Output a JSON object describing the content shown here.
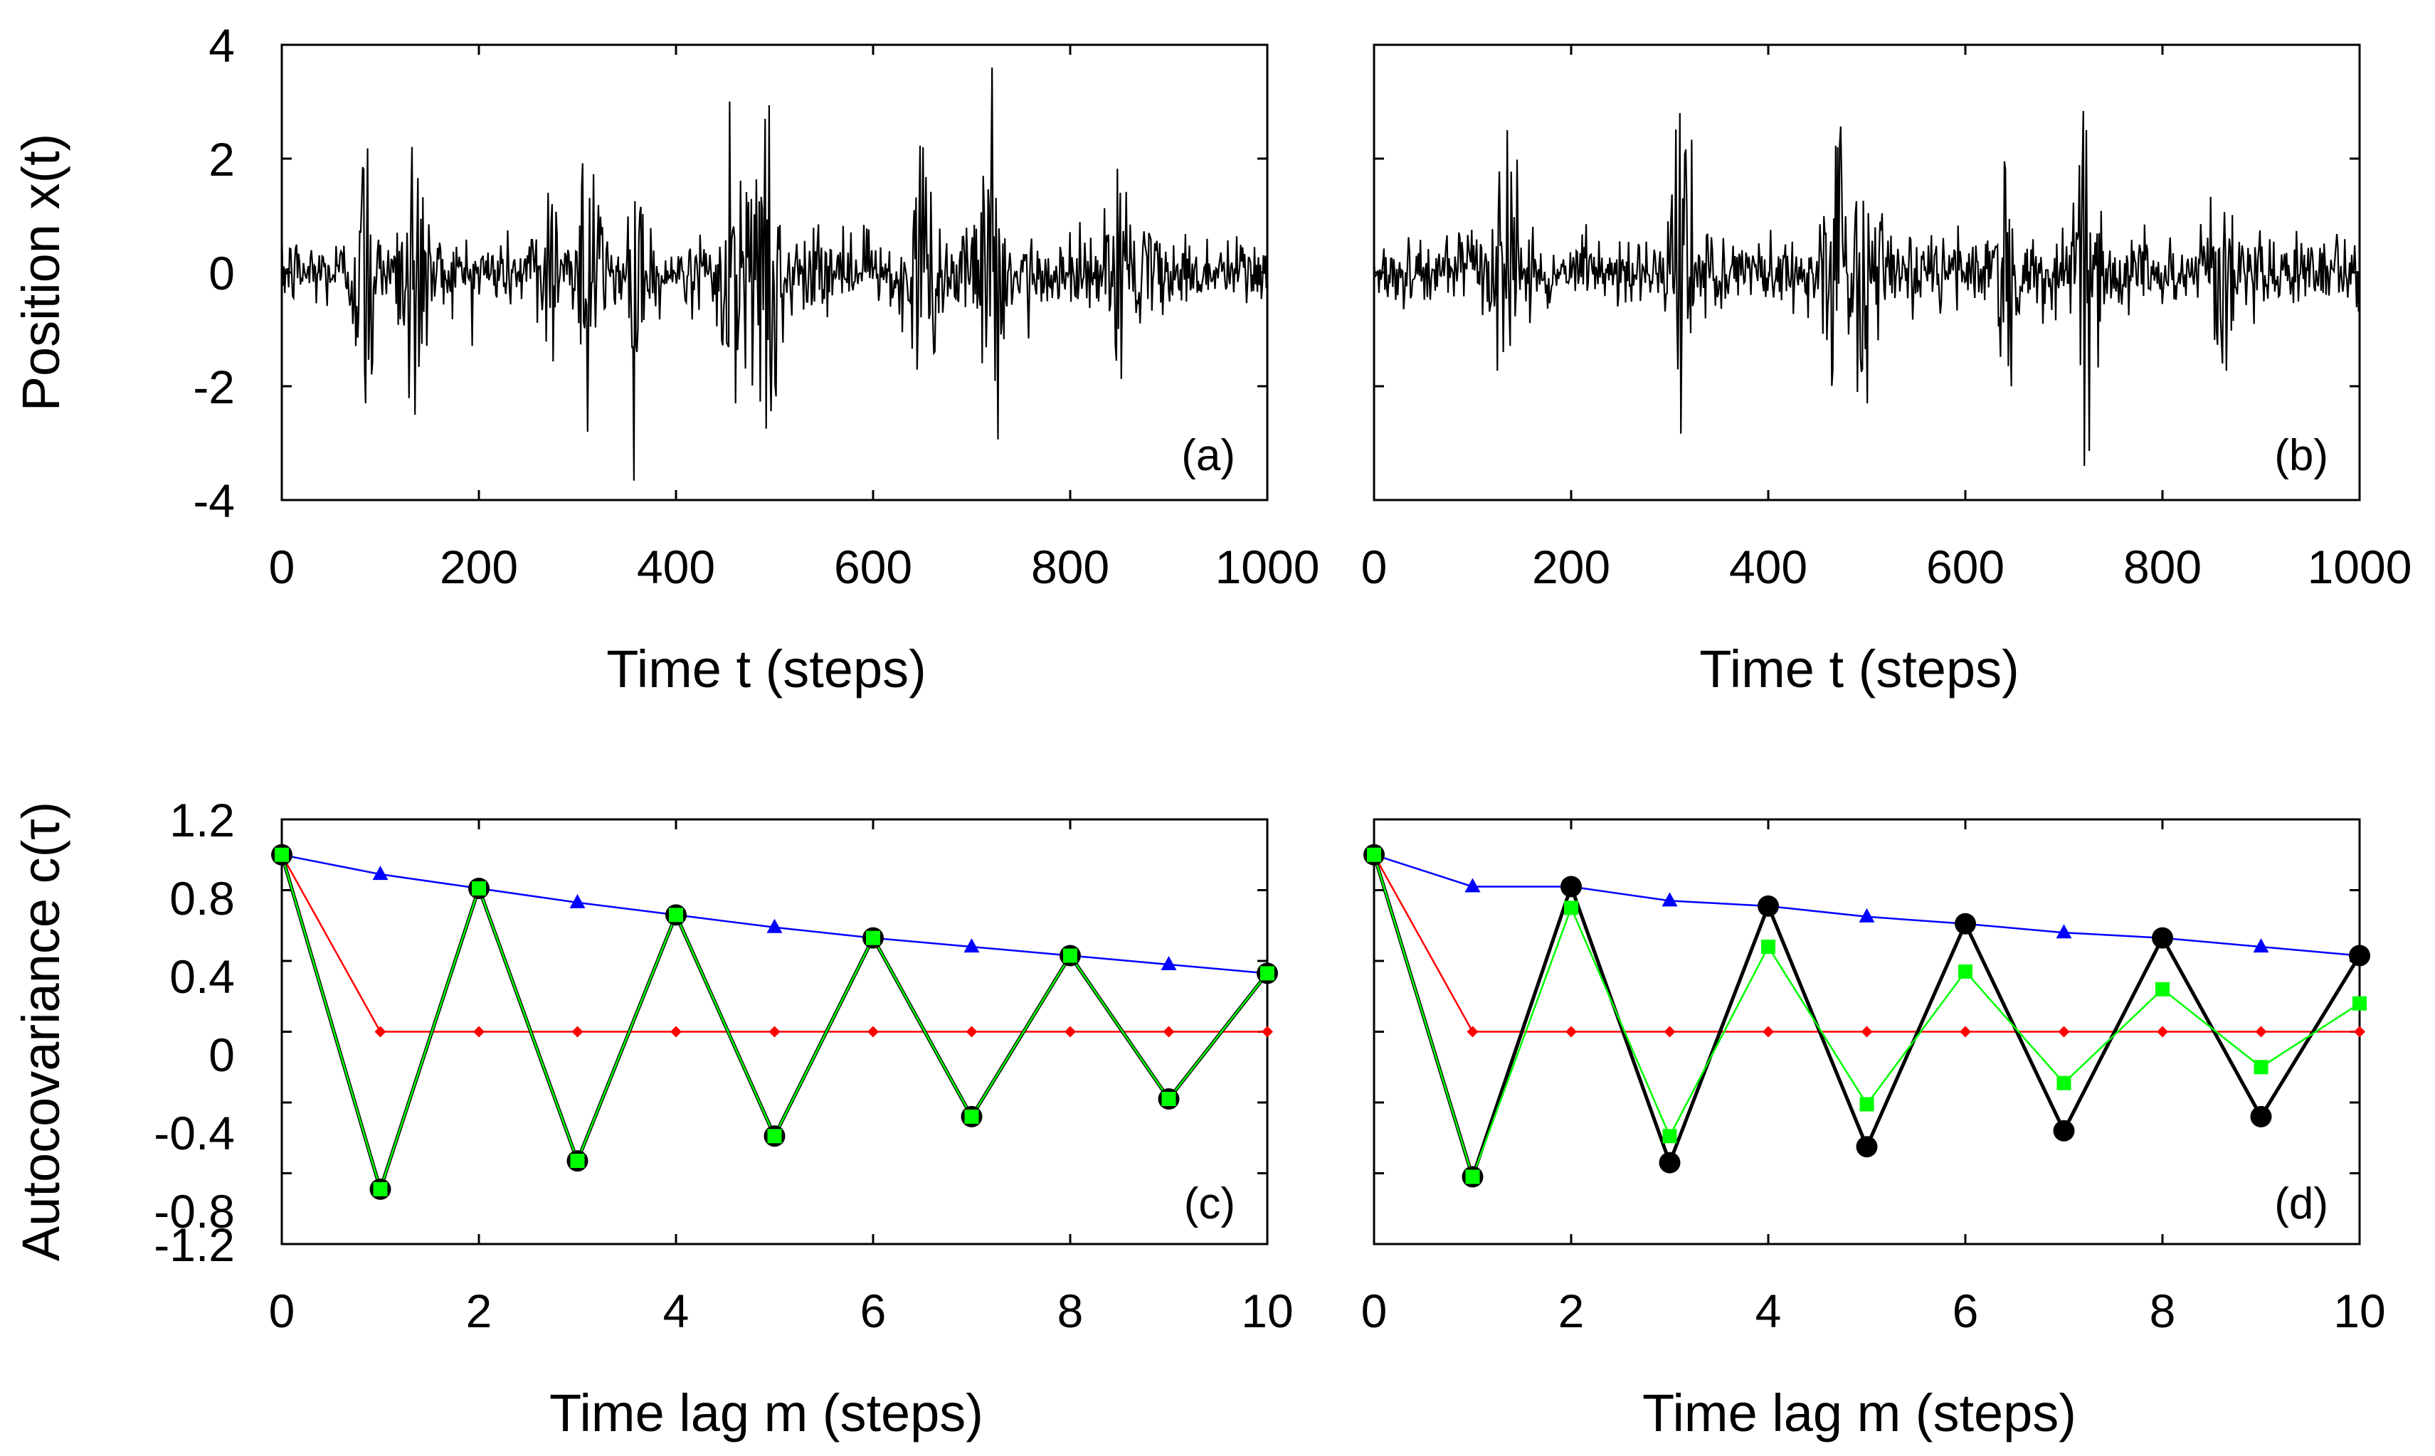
{
  "chart_data": [
    {
      "type": "line",
      "panel": "(a)",
      "xlabel": "Time t (steps)",
      "ylabel": "Position x(t)",
      "xlim": [
        0,
        1000
      ],
      "ylim": [
        -4,
        4
      ],
      "xticks": [
        "0",
        "200",
        "400",
        "600",
        "800",
        "1000"
      ],
      "yticks": [
        "4",
        "2",
        "0",
        "-2",
        "-4"
      ],
      "series": [
        {
          "name": "x(t)",
          "color": "#000000",
          "seed": 12345,
          "n_points": 1000,
          "description": "noisy bursty signal",
          "bursts": [
            {
              "t": 85,
              "amp": 2.3
            },
            {
              "t": 135,
              "amp": 2.5
            },
            {
              "t": 270,
              "amp": 1.4
            },
            {
              "t": 310,
              "amp": 2.8
            },
            {
              "t": 360,
              "amp": 1.4
            },
            {
              "t": 460,
              "amp": 2.3
            },
            {
              "t": 490,
              "amp": 2.7
            },
            {
              "t": 650,
              "amp": 2.2
            },
            {
              "t": 720,
              "amp": 3.6
            },
            {
              "t": 850,
              "amp": 1.4
            }
          ]
        }
      ]
    },
    {
      "type": "line",
      "panel": "(b)",
      "xlabel": "Time t (steps)",
      "ylabel": "",
      "xlim": [
        0,
        1000
      ],
      "ylim": [
        -4,
        4
      ],
      "xticks": [
        "0",
        "200",
        "400",
        "600",
        "800",
        "1000"
      ],
      "series": [
        {
          "name": "x(t)",
          "color": "#000000",
          "seed": 67890,
          "n_points": 1000,
          "description": "noisy bursty signal",
          "bursts": [
            {
              "t": 135,
              "amp": 2.5
            },
            {
              "t": 310,
              "amp": 2.8
            },
            {
              "t": 470,
              "amp": 2.2
            },
            {
              "t": 500,
              "amp": 2.3
            },
            {
              "t": 640,
              "amp": 1.8
            },
            {
              "t": 720,
              "amp": 3.4
            },
            {
              "t": 860,
              "amp": 1.6
            }
          ]
        }
      ]
    },
    {
      "type": "line",
      "panel": "(c)",
      "xlabel": "Time lag m (steps)",
      "ylabel": "Autocovariance c(τ)",
      "xlim": [
        0,
        10
      ],
      "ylim": [
        -1.2,
        1.2
      ],
      "xticks": [
        "0",
        "2",
        "4",
        "6",
        "8",
        "10"
      ],
      "yticks": [
        "1.2",
        "0.8",
        "0.4",
        "0",
        "-0.4",
        "-0.8",
        "-1.2"
      ],
      "x": [
        0,
        1,
        2,
        3,
        4,
        5,
        6,
        7,
        8,
        9,
        10
      ],
      "series": [
        {
          "name": "blue",
          "color": "#0000ff",
          "marker": "triangle",
          "values": [
            1.0,
            0.89,
            0.81,
            0.73,
            0.66,
            0.59,
            0.53,
            0.48,
            0.43,
            0.38,
            0.33
          ]
        },
        {
          "name": "red",
          "color": "#ff0000",
          "marker": "diamond",
          "values": [
            1.0,
            0.0,
            0.0,
            0.0,
            0.0,
            0.0,
            0.0,
            0.0,
            0.0,
            0.0,
            0.0
          ]
        },
        {
          "name": "black",
          "color": "#000000",
          "marker": "circle",
          "values": [
            1.0,
            -0.89,
            0.81,
            -0.73,
            0.66,
            -0.59,
            0.53,
            -0.48,
            0.43,
            -0.38,
            0.33
          ]
        },
        {
          "name": "green",
          "color": "#00ff00",
          "marker": "square",
          "values": [
            1.0,
            -0.89,
            0.81,
            -0.73,
            0.66,
            -0.59,
            0.53,
            -0.48,
            0.43,
            -0.38,
            0.33
          ]
        }
      ]
    },
    {
      "type": "line",
      "panel": "(d)",
      "xlabel": "Time lag m (steps)",
      "ylabel": "",
      "xlim": [
        0,
        10
      ],
      "ylim": [
        -1.2,
        1.2
      ],
      "xticks": [
        "0",
        "2",
        "4",
        "6",
        "8",
        "10"
      ],
      "x": [
        0,
        1,
        2,
        3,
        4,
        5,
        6,
        7,
        8,
        9,
        10
      ],
      "series": [
        {
          "name": "blue",
          "color": "#0000ff",
          "marker": "triangle",
          "values": [
            1.0,
            0.82,
            0.82,
            0.74,
            0.71,
            0.65,
            0.61,
            0.56,
            0.53,
            0.48,
            0.43
          ]
        },
        {
          "name": "red",
          "color": "#ff0000",
          "marker": "diamond",
          "values": [
            1.0,
            0.0,
            0.0,
            0.0,
            0.0,
            0.0,
            0.0,
            0.0,
            0.0,
            0.0,
            0.0
          ]
        },
        {
          "name": "black",
          "color": "#000000",
          "marker": "circle",
          "values": [
            1.0,
            -0.82,
            0.82,
            -0.74,
            0.71,
            -0.65,
            0.61,
            -0.56,
            0.53,
            -0.48,
            0.43
          ]
        },
        {
          "name": "green",
          "color": "#00ff00",
          "marker": "square",
          "values": [
            1.0,
            -0.82,
            0.7,
            -0.59,
            0.48,
            -0.41,
            0.34,
            -0.29,
            0.24,
            -0.2,
            0.16
          ]
        }
      ]
    }
  ]
}
